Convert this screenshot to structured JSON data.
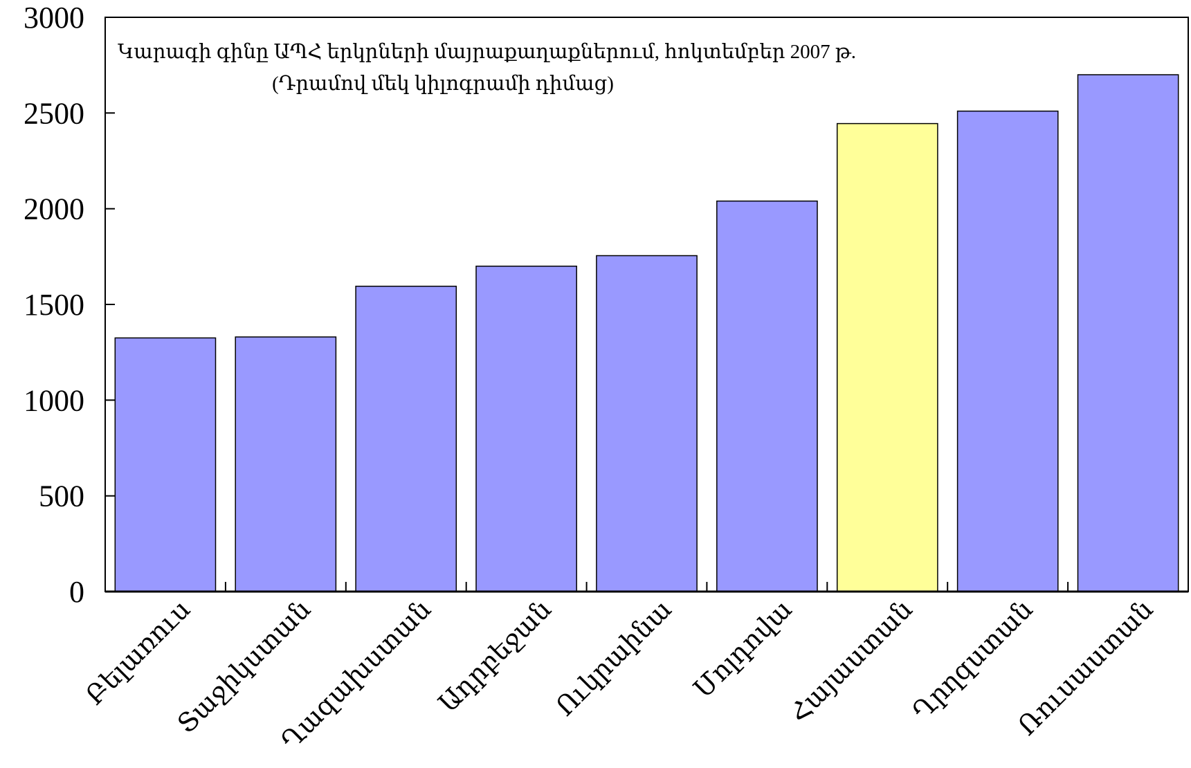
{
  "chart_data": {
    "type": "bar",
    "title": "",
    "subtitle": "Կարագի գինը ԱՊՀ երկրների մայրաքաղաքներում, հոկտեմբեր 2007 թ.",
    "subtitle_2": "(Դրամով մեկ կիլոգրամի դիմաց)",
    "xlabel": "",
    "ylabel": "",
    "ylim": [
      0,
      3000
    ],
    "yticks": [
      0,
      500,
      1000,
      1500,
      2000,
      2500,
      3000
    ],
    "categories": [
      "Բելառուս",
      "Տաջիկստան",
      "Ղազախստան",
      "Ադրբեջան",
      "Ուկրաինա",
      "Մոլդովա",
      "Հայաստան",
      "Ղրղզստան",
      "Ռուսաստան"
    ],
    "values": [
      1325,
      1330,
      1595,
      1700,
      1755,
      2040,
      2445,
      2510,
      2700
    ],
    "bar_colors": [
      "#9999ff",
      "#9999ff",
      "#9999ff",
      "#9999ff",
      "#9999ff",
      "#9999ff",
      "#ffff99",
      "#9999ff",
      "#9999ff"
    ],
    "grid": false,
    "legend": "none"
  }
}
